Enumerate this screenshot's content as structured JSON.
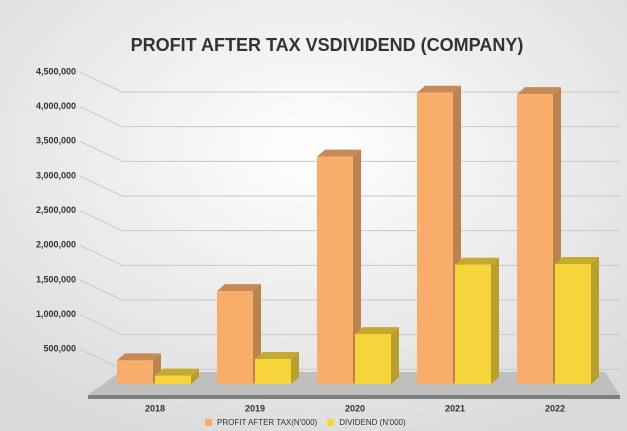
{
  "chart_data": {
    "type": "bar",
    "title": "PROFIT AFTER TAX VSDIVIDEND (COMPANY)",
    "categories": [
      "2018",
      "2019",
      "2020",
      "2021",
      "2022"
    ],
    "series": [
      {
        "name": "PROFIT AFTER TAX(N'000)",
        "color": "#f9ad6a",
        "values": [
          340000,
          1340000,
          3280000,
          4200000,
          4180000
        ]
      },
      {
        "name": "DIVIDEND (N'000)",
        "color": "#f7d43a",
        "values": [
          120000,
          360000,
          720000,
          1720000,
          1730000
        ]
      }
    ],
    "ylim": [
      0,
      4500000
    ],
    "yticks": [
      {
        "value": 500000,
        "label": "500,000"
      },
      {
        "value": 1000000,
        "label": "1,000,000"
      },
      {
        "value": 1500000,
        "label": "1,500,000"
      },
      {
        "value": 2000000,
        "label": "2,000,000"
      },
      {
        "value": 2500000,
        "label": "2,500,000"
      },
      {
        "value": 3000000,
        "label": "3,000,000"
      },
      {
        "value": 3500000,
        "label": "3,500,000"
      },
      {
        "value": 4000000,
        "label": "4,000,000"
      },
      {
        "value": 4500000,
        "label": "4,500,000"
      }
    ],
    "grid": true,
    "legend": "bottom"
  }
}
